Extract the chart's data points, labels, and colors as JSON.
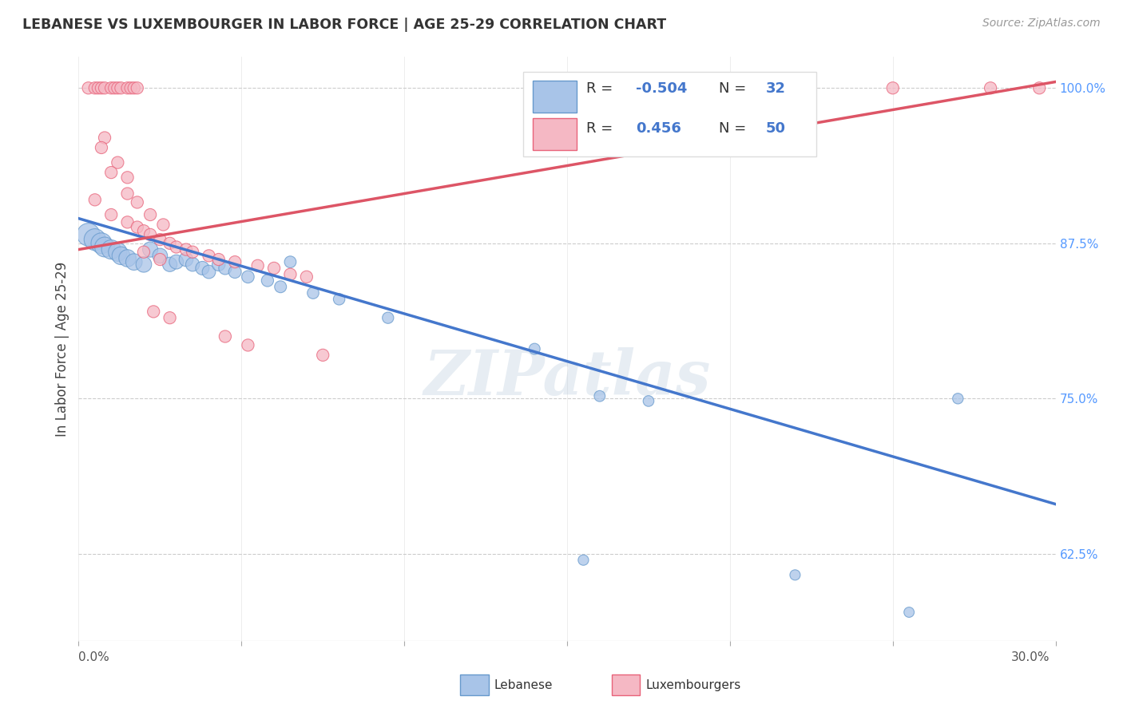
{
  "title": "LEBANESE VS LUXEMBOURGER IN LABOR FORCE | AGE 25-29 CORRELATION CHART",
  "source": "Source: ZipAtlas.com",
  "ylabel": "In Labor Force | Age 25-29",
  "xlim": [
    0.0,
    0.3
  ],
  "ylim": [
    0.555,
    1.025
  ],
  "ytick_positions": [
    1.0,
    0.875,
    0.75,
    0.625
  ],
  "ytick_labels_right": [
    "100.0%",
    "87.5%",
    "75.0%",
    "62.5%"
  ],
  "blue_color": "#A8C4E8",
  "pink_color": "#F5B8C4",
  "blue_edge_color": "#6699CC",
  "pink_edge_color": "#E8637A",
  "blue_line_color": "#4477CC",
  "pink_line_color": "#DD5566",
  "blue_trend": [
    0.0,
    0.3,
    0.895,
    0.665
  ],
  "pink_trend": [
    0.0,
    0.3,
    0.87,
    1.005
  ],
  "blue_scatter": [
    [
      0.003,
      0.882
    ],
    [
      0.005,
      0.878
    ],
    [
      0.007,
      0.875
    ],
    [
      0.008,
      0.872
    ],
    [
      0.01,
      0.87
    ],
    [
      0.012,
      0.868
    ],
    [
      0.013,
      0.865
    ],
    [
      0.015,
      0.863
    ],
    [
      0.017,
      0.86
    ],
    [
      0.02,
      0.858
    ],
    [
      0.022,
      0.87
    ],
    [
      0.025,
      0.865
    ],
    [
      0.028,
      0.858
    ],
    [
      0.03,
      0.86
    ],
    [
      0.033,
      0.862
    ],
    [
      0.035,
      0.858
    ],
    [
      0.038,
      0.855
    ],
    [
      0.04,
      0.852
    ],
    [
      0.043,
      0.858
    ],
    [
      0.045,
      0.855
    ],
    [
      0.048,
      0.852
    ],
    [
      0.052,
      0.848
    ],
    [
      0.058,
      0.845
    ],
    [
      0.062,
      0.84
    ],
    [
      0.065,
      0.86
    ],
    [
      0.072,
      0.835
    ],
    [
      0.08,
      0.83
    ],
    [
      0.095,
      0.815
    ],
    [
      0.14,
      0.79
    ],
    [
      0.16,
      0.752
    ],
    [
      0.175,
      0.748
    ],
    [
      0.27,
      0.75
    ],
    [
      0.155,
      0.62
    ],
    [
      0.22,
      0.608
    ],
    [
      0.255,
      0.578
    ]
  ],
  "blue_sizes": [
    420,
    380,
    350,
    320,
    300,
    280,
    260,
    240,
    220,
    200,
    190,
    180,
    170,
    165,
    160,
    155,
    150,
    145,
    140,
    135,
    130,
    125,
    120,
    115,
    112,
    110,
    108,
    105,
    100,
    98,
    95,
    92,
    90,
    88,
    85
  ],
  "pink_scatter": [
    [
      0.003,
      1.0
    ],
    [
      0.005,
      1.0
    ],
    [
      0.006,
      1.0
    ],
    [
      0.007,
      1.0
    ],
    [
      0.008,
      1.0
    ],
    [
      0.01,
      1.0
    ],
    [
      0.011,
      1.0
    ],
    [
      0.012,
      1.0
    ],
    [
      0.013,
      1.0
    ],
    [
      0.015,
      1.0
    ],
    [
      0.016,
      1.0
    ],
    [
      0.017,
      1.0
    ],
    [
      0.018,
      1.0
    ],
    [
      0.25,
      1.0
    ],
    [
      0.28,
      1.0
    ],
    [
      0.295,
      1.0
    ],
    [
      0.008,
      0.96
    ],
    [
      0.012,
      0.94
    ],
    [
      0.015,
      0.928
    ],
    [
      0.005,
      0.91
    ],
    [
      0.01,
      0.898
    ],
    [
      0.015,
      0.892
    ],
    [
      0.018,
      0.888
    ],
    [
      0.02,
      0.885
    ],
    [
      0.022,
      0.882
    ],
    [
      0.025,
      0.878
    ],
    [
      0.028,
      0.875
    ],
    [
      0.03,
      0.872
    ],
    [
      0.033,
      0.87
    ],
    [
      0.035,
      0.868
    ],
    [
      0.04,
      0.865
    ],
    [
      0.043,
      0.862
    ],
    [
      0.048,
      0.86
    ],
    [
      0.055,
      0.857
    ],
    [
      0.06,
      0.855
    ],
    [
      0.023,
      0.82
    ],
    [
      0.028,
      0.815
    ],
    [
      0.045,
      0.8
    ],
    [
      0.052,
      0.793
    ],
    [
      0.075,
      0.785
    ],
    [
      0.065,
      0.85
    ],
    [
      0.07,
      0.848
    ],
    [
      0.02,
      0.868
    ],
    [
      0.025,
      0.862
    ],
    [
      0.01,
      0.932
    ],
    [
      0.007,
      0.952
    ],
    [
      0.015,
      0.915
    ],
    [
      0.018,
      0.908
    ],
    [
      0.022,
      0.898
    ],
    [
      0.026,
      0.89
    ]
  ],
  "watermark": "ZIPatlas",
  "background_color": "#FFFFFF",
  "grid_color": "#CCCCCC"
}
